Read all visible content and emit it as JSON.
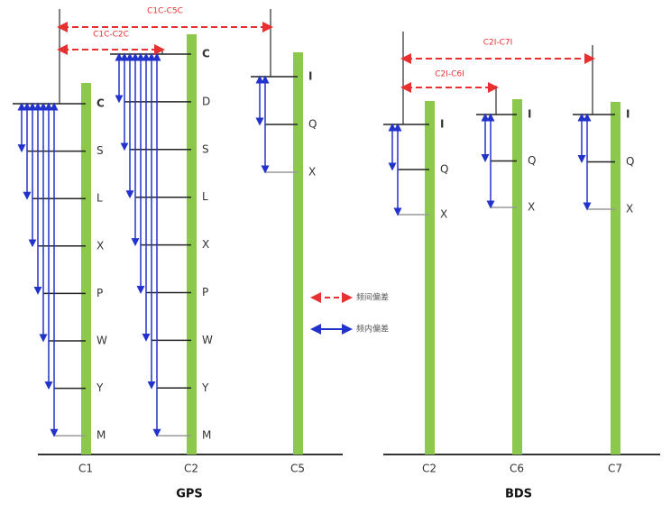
{
  "groups": [
    {
      "title": "GPS",
      "columns": [
        {
          "label": "C1",
          "rows": [
            "C",
            "S",
            "L",
            "X",
            "P",
            "W",
            "Y",
            "M"
          ]
        },
        {
          "label": "C2",
          "rows": [
            "C",
            "D",
            "S",
            "L",
            "X",
            "P",
            "W",
            "Y",
            "M"
          ]
        },
        {
          "label": "C5",
          "rows": [
            "I",
            "Q",
            "X"
          ]
        }
      ],
      "bias_labels": [
        "C1C-C5C",
        "C1C-C2C"
      ]
    },
    {
      "title": "BDS",
      "columns": [
        {
          "label": "C2",
          "rows": [
            "I",
            "Q",
            "X"
          ]
        },
        {
          "label": "C6",
          "rows": [
            "I",
            "Q",
            "X"
          ]
        },
        {
          "label": "C7",
          "rows": [
            "I",
            "Q",
            "X"
          ]
        }
      ],
      "bias_labels": [
        "C2I-C7I",
        "C2I-C6I"
      ]
    }
  ],
  "legend": [
    "频间偏差",
    "频内偏差"
  ]
}
